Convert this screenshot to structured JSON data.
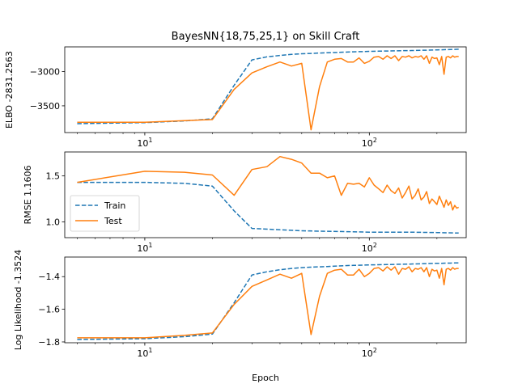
{
  "chart_data": [
    {
      "type": "line",
      "title": "BayesNN{18,75,25,1} on Skill Craft",
      "xlabel": "",
      "ylabel": "ELBO -2831.2563",
      "xscale": "log",
      "xlim": [
        4.4,
        270
      ],
      "ylim": [
        -3890,
        -2640
      ],
      "xticks": [
        {
          "base": "10",
          "exp": "1",
          "value": 10
        },
        {
          "base": "10",
          "exp": "2",
          "value": 100
        }
      ],
      "yticks": [
        {
          "label": "−3500",
          "value": -3500
        },
        {
          "label": "−3000",
          "value": -3000
        }
      ],
      "series": [
        {
          "name": "Train",
          "style": "dashed",
          "color": "#1f77b4",
          "x": [
            5,
            10,
            15,
            20,
            25,
            30,
            35,
            40,
            45,
            50,
            55,
            60,
            65,
            70,
            75,
            80,
            85,
            90,
            95,
            100,
            110,
            120,
            130,
            140,
            150,
            160,
            170,
            180,
            190,
            200,
            210,
            220,
            230,
            240,
            250
          ],
          "y": [
            -3760,
            -3745,
            -3720,
            -3690,
            -3200,
            -2830,
            -2785,
            -2765,
            -2750,
            -2740,
            -2735,
            -2730,
            -2725,
            -2722,
            -2718,
            -2715,
            -2712,
            -2710,
            -2708,
            -2705,
            -2703,
            -2700,
            -2698,
            -2696,
            -2694,
            -2692,
            -2690,
            -2688,
            -2686,
            -2684,
            -2682,
            -2680,
            -2678,
            -2676,
            -2674
          ]
        },
        {
          "name": "Test",
          "style": "solid",
          "color": "#ff7f0e",
          "x": [
            5,
            10,
            15,
            20,
            25,
            30,
            35,
            40,
            45,
            50,
            55,
            60,
            65,
            70,
            75,
            80,
            85,
            90,
            95,
            100,
            105,
            110,
            115,
            120,
            125,
            130,
            135,
            140,
            145,
            150,
            155,
            160,
            165,
            170,
            175,
            180,
            185,
            190,
            195,
            200,
            205,
            210,
            215,
            220,
            225,
            230,
            235,
            240,
            245,
            250
          ],
          "y": [
            -3740,
            -3740,
            -3715,
            -3700,
            -3260,
            -3020,
            -2930,
            -2860,
            -2920,
            -2880,
            -3850,
            -3220,
            -2860,
            -2820,
            -2810,
            -2860,
            -2860,
            -2800,
            -2880,
            -2850,
            -2790,
            -2780,
            -2820,
            -2770,
            -2810,
            -2770,
            -2840,
            -2780,
            -2790,
            -2770,
            -2800,
            -2780,
            -2790,
            -2770,
            -2820,
            -2770,
            -2880,
            -2790,
            -2810,
            -2800,
            -2900,
            -2780,
            -3040,
            -2790,
            -2780,
            -2800,
            -2770,
            -2790,
            -2780,
            -2780
          ]
        }
      ]
    },
    {
      "type": "line",
      "title": "",
      "xlabel": "",
      "ylabel": "RMSE 1.1606",
      "xscale": "log",
      "xlim": [
        4.4,
        270
      ],
      "ylim": [
        0.83,
        1.76
      ],
      "legend": "center-left",
      "xticks": [
        {
          "base": "10",
          "exp": "1",
          "value": 10
        },
        {
          "base": "10",
          "exp": "2",
          "value": 100
        }
      ],
      "yticks": [
        {
          "label": "1.0",
          "value": 1.0
        },
        {
          "label": "1.5",
          "value": 1.5
        }
      ],
      "series": [
        {
          "name": "Train",
          "style": "dashed",
          "color": "#1f77b4",
          "x": [
            5,
            10,
            15,
            20,
            25,
            30,
            40,
            50,
            60,
            80,
            100,
            150,
            200,
            250
          ],
          "y": [
            1.43,
            1.43,
            1.42,
            1.39,
            1.12,
            0.93,
            0.915,
            0.905,
            0.9,
            0.895,
            0.89,
            0.89,
            0.885,
            0.88
          ]
        },
        {
          "name": "Test",
          "style": "solid",
          "color": "#ff7f0e",
          "x": [
            5,
            10,
            15,
            20,
            25,
            30,
            35,
            40,
            45,
            50,
            55,
            60,
            65,
            70,
            75,
            80,
            85,
            90,
            95,
            100,
            105,
            110,
            115,
            120,
            125,
            130,
            135,
            140,
            145,
            150,
            155,
            160,
            165,
            170,
            175,
            180,
            185,
            190,
            195,
            200,
            205,
            210,
            215,
            220,
            225,
            230,
            235,
            240,
            245,
            250
          ],
          "y": [
            1.43,
            1.55,
            1.54,
            1.51,
            1.29,
            1.57,
            1.6,
            1.71,
            1.68,
            1.64,
            1.53,
            1.53,
            1.48,
            1.5,
            1.29,
            1.42,
            1.41,
            1.42,
            1.38,
            1.48,
            1.4,
            1.36,
            1.32,
            1.4,
            1.34,
            1.31,
            1.37,
            1.26,
            1.32,
            1.39,
            1.25,
            1.29,
            1.36,
            1.24,
            1.27,
            1.33,
            1.2,
            1.25,
            1.22,
            1.19,
            1.28,
            1.22,
            1.16,
            1.24,
            1.18,
            1.22,
            1.13,
            1.18,
            1.15,
            1.16
          ]
        }
      ]
    },
    {
      "type": "line",
      "title": "",
      "xlabel": "Epoch",
      "ylabel": "Log Likelihood -1.3524",
      "xscale": "log",
      "xlim": [
        4.4,
        270
      ],
      "ylim": [
        -1.805,
        -1.28
      ],
      "xticks": [
        {
          "base": "10",
          "exp": "1",
          "value": 10
        },
        {
          "base": "10",
          "exp": "2",
          "value": 100
        }
      ],
      "yticks": [
        {
          "label": "−1.8",
          "value": -1.8
        },
        {
          "label": "−1.6",
          "value": -1.6
        },
        {
          "label": "−1.4",
          "value": -1.4
        }
      ],
      "series": [
        {
          "name": "Train",
          "style": "dashed",
          "color": "#1f77b4",
          "x": [
            5,
            10,
            15,
            20,
            25,
            30,
            35,
            40,
            45,
            50,
            55,
            60,
            65,
            70,
            75,
            80,
            85,
            90,
            95,
            100,
            110,
            120,
            130,
            140,
            150,
            160,
            170,
            180,
            190,
            200,
            210,
            220,
            230,
            240,
            250
          ],
          "y": [
            -1.785,
            -1.78,
            -1.768,
            -1.752,
            -1.56,
            -1.39,
            -1.37,
            -1.358,
            -1.35,
            -1.345,
            -1.342,
            -1.34,
            -1.338,
            -1.336,
            -1.334,
            -1.332,
            -1.331,
            -1.33,
            -1.329,
            -1.328,
            -1.327,
            -1.326,
            -1.325,
            -1.324,
            -1.323,
            -1.322,
            -1.321,
            -1.32,
            -1.319,
            -1.318,
            -1.318,
            -1.317,
            -1.317,
            -1.316,
            -1.316
          ]
        },
        {
          "name": "Test",
          "style": "solid",
          "color": "#ff7f0e",
          "x": [
            5,
            10,
            15,
            20,
            25,
            30,
            35,
            40,
            45,
            50,
            55,
            60,
            65,
            70,
            75,
            80,
            85,
            90,
            95,
            100,
            105,
            110,
            115,
            120,
            125,
            130,
            135,
            140,
            145,
            150,
            155,
            160,
            165,
            170,
            175,
            180,
            185,
            190,
            195,
            200,
            205,
            210,
            215,
            220,
            225,
            230,
            235,
            240,
            245,
            250
          ],
          "y": [
            -1.775,
            -1.775,
            -1.76,
            -1.745,
            -1.57,
            -1.46,
            -1.42,
            -1.385,
            -1.41,
            -1.38,
            -1.755,
            -1.52,
            -1.38,
            -1.36,
            -1.355,
            -1.39,
            -1.39,
            -1.355,
            -1.4,
            -1.38,
            -1.35,
            -1.345,
            -1.365,
            -1.34,
            -1.36,
            -1.34,
            -1.385,
            -1.35,
            -1.355,
            -1.34,
            -1.37,
            -1.35,
            -1.355,
            -1.345,
            -1.37,
            -1.345,
            -1.4,
            -1.355,
            -1.365,
            -1.36,
            -1.41,
            -1.35,
            -1.45,
            -1.355,
            -1.35,
            -1.36,
            -1.345,
            -1.355,
            -1.35,
            -1.35
          ]
        }
      ]
    }
  ],
  "legend": {
    "items": [
      {
        "name": "Train",
        "style": "dashed",
        "color": "#1f77b4"
      },
      {
        "name": "Test",
        "style": "solid",
        "color": "#ff7f0e"
      }
    ]
  }
}
